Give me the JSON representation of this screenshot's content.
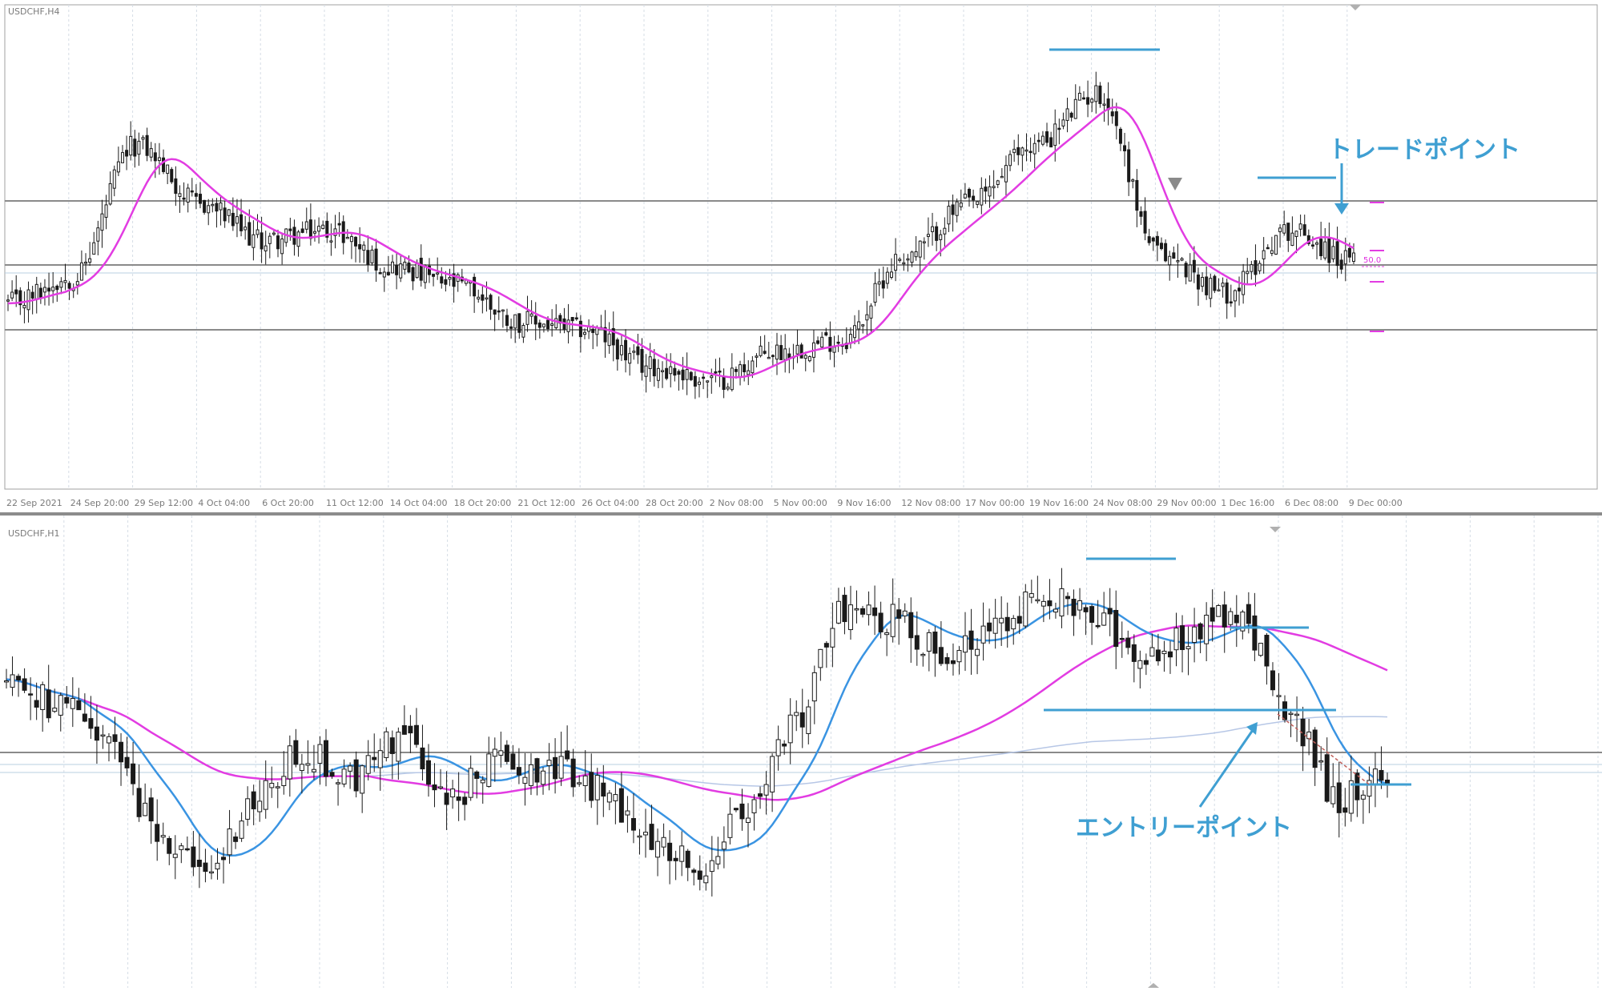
{
  "colors": {
    "bg": "#ffffff",
    "grid": "#c9d3dc",
    "hline": "#8a8a8a",
    "ma": "#e23ce2",
    "ma_fast": "#3a94e2",
    "ma_slow": "#b7c7e6",
    "annotation": "#3f9fd2",
    "candle": "#1a1a1a"
  },
  "top_panel": {
    "symbol_label": "USDCHF,H4",
    "xaxis_labels": [
      "22 Sep 2021",
      "24 Sep 20:00",
      "29 Sep 12:00",
      "4 Oct 04:00",
      "6 Oct 20:00",
      "11 Oct 12:00",
      "14 Oct 04:00",
      "18 Oct 20:00",
      "21 Oct 12:00",
      "26 Oct 04:00",
      "28 Oct 20:00",
      "2 Nov 08:00",
      "5 Nov 00:00",
      "9 Nov 16:00",
      "12 Nov 08:00",
      "17 Nov 00:00",
      "19 Nov 16:00",
      "24 Nov 08:00",
      "29 Nov 00:00",
      "1 Dec 16:00",
      "6 Dec 08:00",
      "9 Dec 00:00"
    ],
    "annotation_text": "トレードポイント",
    "fib_label": "50.0"
  },
  "bottom_panel": {
    "symbol_label": "USDCHF,H1",
    "annotation_text": "エントリーポイント"
  },
  "chart_data": [
    {
      "type": "candlestick",
      "symbol": "USDCHF",
      "timeframe": "H4",
      "x": [
        "22 Sep 2021",
        "24 Sep 20:00",
        "29 Sep 12:00",
        "4 Oct 04:00",
        "6 Oct 20:00",
        "11 Oct 12:00",
        "14 Oct 04:00",
        "18 Oct 20:00",
        "21 Oct 12:00",
        "26 Oct 04:00",
        "28 Oct 20:00",
        "2 Nov 08:00",
        "5 Nov 00:00",
        "9 Nov 16:00",
        "12 Nov 08:00",
        "17 Nov 00:00",
        "19 Nov 16:00",
        "24 Nov 08:00",
        "29 Nov 00:00",
        "1 Dec 16:00",
        "6 Dec 08:00",
        "9 Dec 00:00"
      ],
      "price_path": [
        0.35,
        0.42,
        0.78,
        0.62,
        0.52,
        0.55,
        0.45,
        0.4,
        0.3,
        0.28,
        0.18,
        0.14,
        0.22,
        0.25,
        0.48,
        0.62,
        0.78,
        0.92,
        0.48,
        0.38,
        0.55,
        0.46
      ],
      "moving_average": "magenta"
    },
    {
      "type": "candlestick",
      "symbol": "USDCHF",
      "timeframe": "H1",
      "price_path": [
        0.72,
        0.65,
        0.55,
        0.32,
        0.18,
        0.38,
        0.52,
        0.45,
        0.56,
        0.4,
        0.5,
        0.48,
        0.42,
        0.3,
        0.22,
        0.34,
        0.6,
        0.92,
        0.88,
        0.8,
        0.86,
        0.96,
        0.88,
        0.8,
        0.84,
        0.9,
        0.62,
        0.4,
        0.46
      ],
      "moving_averages": [
        "magenta",
        "blue",
        "light-blue"
      ]
    }
  ]
}
